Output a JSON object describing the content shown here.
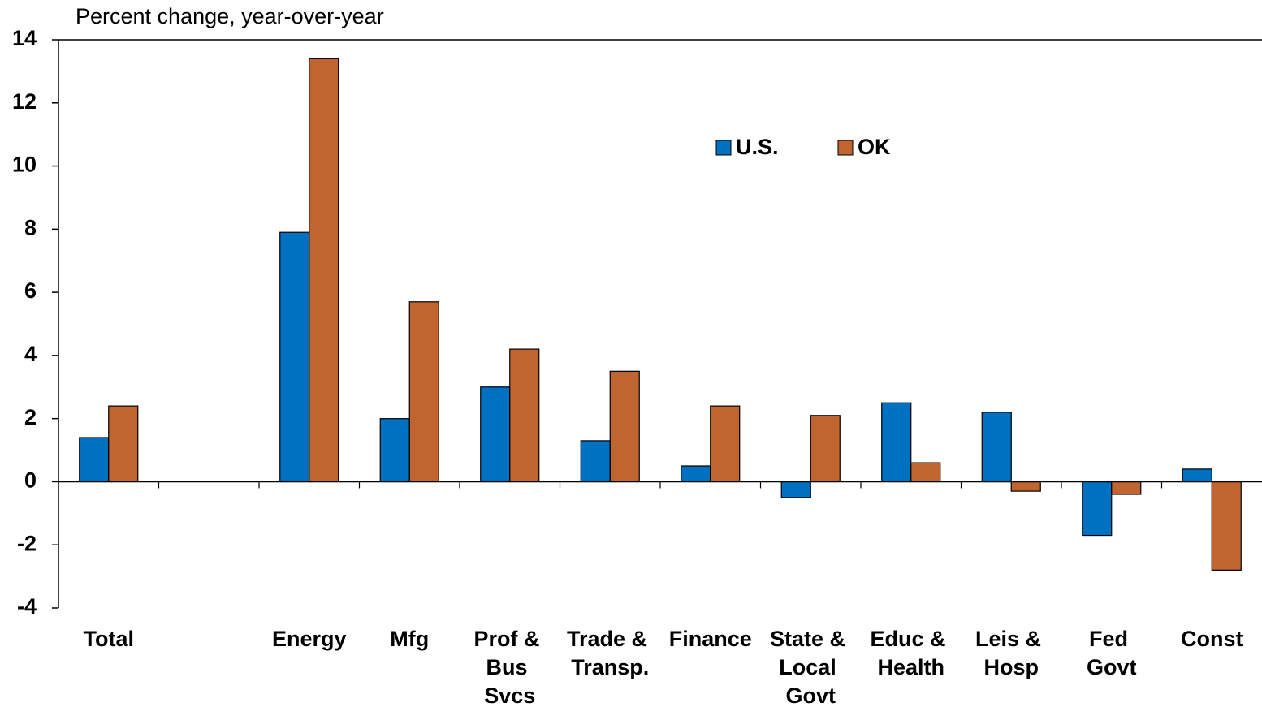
{
  "chart_data": {
    "type": "bar",
    "title": "Percent change, year-over-year",
    "categories": [
      "Total",
      null,
      "Energy",
      "Mfg",
      "Prof & Bus Svcs",
      "Trade & Transp.",
      "Finance",
      "State & Local Govt",
      "Educ & Health",
      "Leis & Hosp",
      "Fed Govt",
      "Const"
    ],
    "series": [
      {
        "name": "U.S.",
        "color": "#0070c0",
        "values": [
          1.4,
          null,
          7.9,
          2.0,
          3.0,
          1.3,
          0.5,
          -0.5,
          2.5,
          2.2,
          -1.7,
          0.4
        ]
      },
      {
        "name": "OK",
        "color": "#c0652f",
        "values": [
          2.4,
          null,
          13.4,
          5.7,
          4.2,
          3.5,
          2.4,
          2.1,
          0.6,
          -0.3,
          -0.4,
          -2.8
        ]
      }
    ],
    "ylim": [
      -4,
      14
    ],
    "yticks": [
      -4,
      -2,
      0,
      2,
      4,
      6,
      8,
      10,
      12,
      14
    ]
  }
}
